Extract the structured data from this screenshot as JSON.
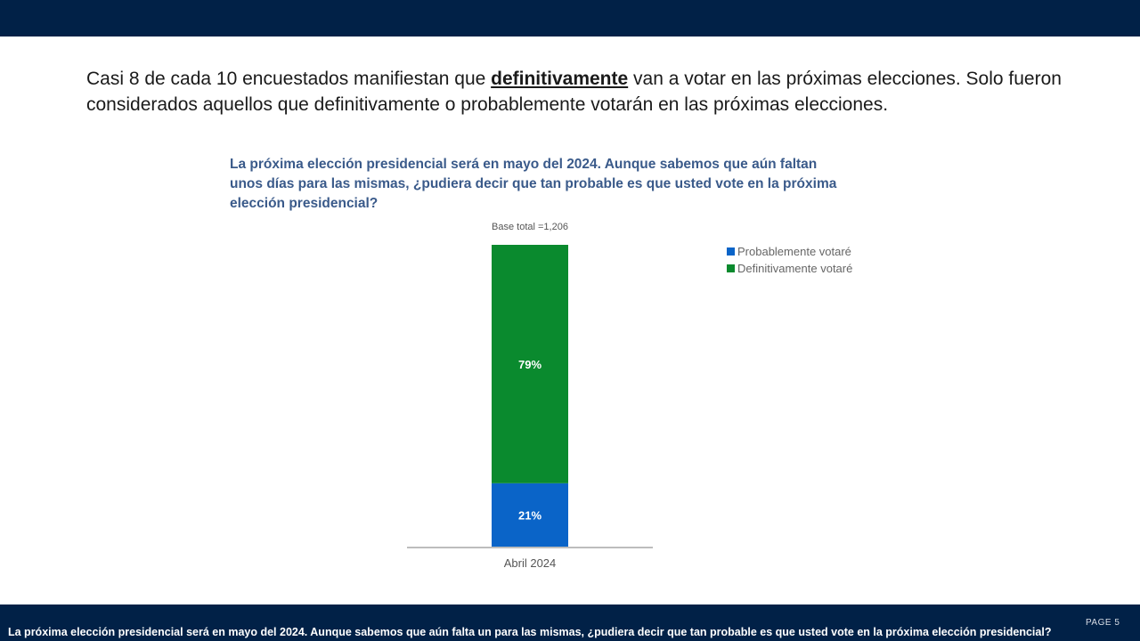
{
  "slide": {
    "headline_part1": "Casi 8 de cada 10 encuestados manifiestan que ",
    "headline_emph": "definitivamente",
    "headline_part2": " van a votar en las próximas elecciones. Solo fueron considerados aquellos que definitivamente o probablemente votarán en las próximas elecciones.",
    "question": "La próxima elección presidencial será en mayo del 2024.  Aunque sabemos que aún faltan unos días para las mismas, ¿pudiera decir que tan probable es que usted vote en la próxima elección presidencial?",
    "footer": "La próxima elección presidencial será en mayo del 2024.  Aunque sabemos que aún falta un para las mismas, ¿pudiera decir que tan probable es que usted vote en la próxima elección presidencial?",
    "page_label": "PAGE  5"
  },
  "colors": {
    "header_bar": "#012147",
    "probablemente": "#0a64c8",
    "definitivamente": "#0a8a2e"
  },
  "chart_data": {
    "type": "bar",
    "stacked": true,
    "title": "La próxima elección presidencial será en mayo del 2024.  Aunque sabemos que aún faltan unos días para las mismas, ¿pudiera decir que tan probable es que usted vote en la próxima elección presidencial?",
    "subtitle": "Base total =1,206",
    "categories": [
      "Abril 2024"
    ],
    "series": [
      {
        "name": "Probablemente votaré",
        "values": [
          21
        ],
        "label": "21%"
      },
      {
        "name": "Definitivamente votaré",
        "values": [
          79
        ],
        "label": "79%"
      }
    ],
    "ylim": [
      0,
      100
    ],
    "legend": "top-right",
    "grid": false
  }
}
